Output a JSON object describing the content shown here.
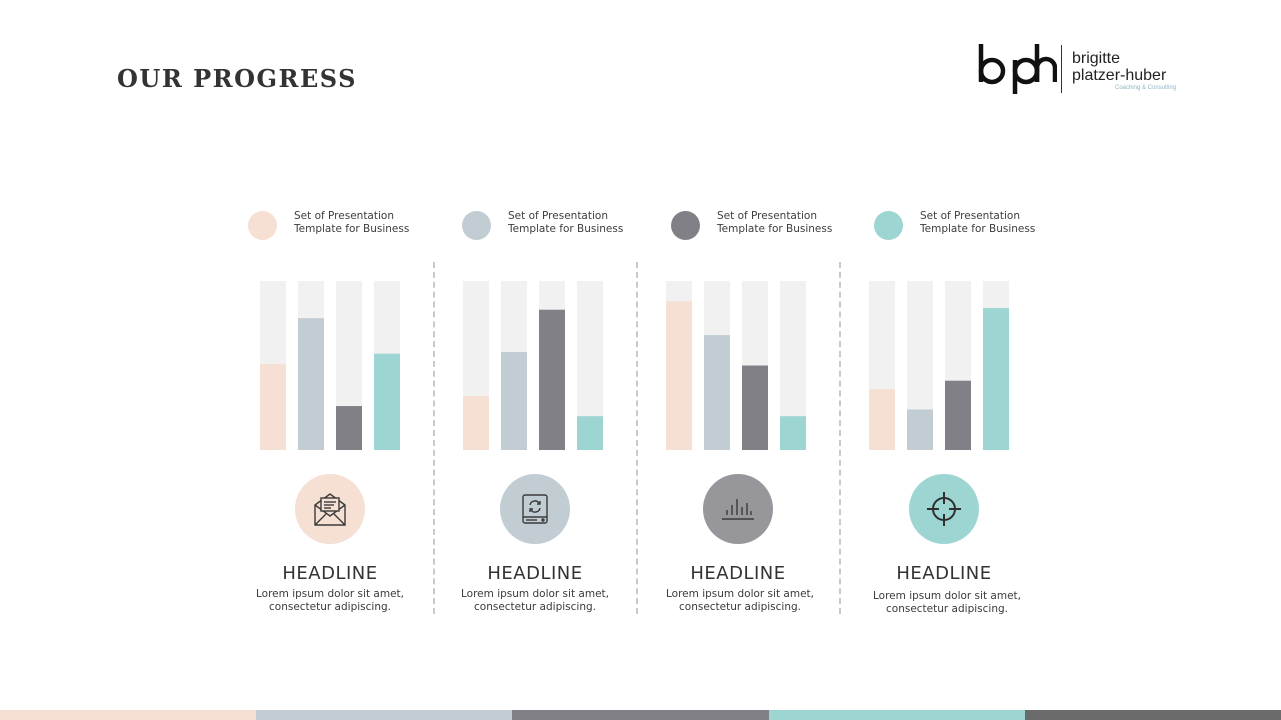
{
  "page": {
    "title": "OUR PROGRESS"
  },
  "logo": {
    "line1": "brigitte",
    "line2": "platzer-huber",
    "tagline": "Coaching & Consulting"
  },
  "colors": {
    "peach": "#f6dfd3",
    "gray_blue": "#c1cdd2",
    "dark_gray": "#818086",
    "teal": "#9dd5d2",
    "track": "#f1f1f1",
    "strip_last": "#6b6b6b"
  },
  "legend": [
    {
      "label_line1": "Set of Presentation",
      "label_line2": "Template for Business",
      "color": "#f6dfd3"
    },
    {
      "label_line1": "Set of Presentation",
      "label_line2": "Template for Business",
      "color": "#c1cdd2"
    },
    {
      "label_line1": "Set of Presentation",
      "label_line2": "Template for Business",
      "color": "#818086"
    },
    {
      "label_line1": "Set of Presentation",
      "label_line2": "Template for Business",
      "color": "#9dd5d2"
    }
  ],
  "chart_data": [
    {
      "type": "bar",
      "categories": [
        "",
        "",
        "",
        ""
      ],
      "values": [
        51,
        78,
        26,
        57
      ],
      "ylim": [
        0,
        100
      ]
    },
    {
      "type": "bar",
      "categories": [
        "",
        "",
        "",
        ""
      ],
      "values": [
        32,
        58,
        83,
        20
      ],
      "ylim": [
        0,
        100
      ]
    },
    {
      "type": "bar",
      "categories": [
        "",
        "",
        "",
        ""
      ],
      "values": [
        88,
        68,
        50,
        20
      ],
      "ylim": [
        0,
        100
      ]
    },
    {
      "type": "bar",
      "categories": [
        "",
        "",
        "",
        ""
      ],
      "values": [
        36,
        24,
        41,
        84
      ],
      "ylim": [
        0,
        100
      ]
    }
  ],
  "sections": [
    {
      "icon": "envelope-icon",
      "icon_bg": "#f6dfd3",
      "headline": "HEADLINE",
      "desc_line1": "Lorem ipsum dolor sit amet,",
      "desc_line2": "consectetur adipiscing."
    },
    {
      "icon": "hard-drive-sync-icon",
      "icon_bg": "#c1cdd2",
      "headline": "HEADLINE",
      "desc_line1": "Lorem ipsum dolor sit amet,",
      "desc_line2": "consectetur adipiscing."
    },
    {
      "icon": "bar-chart-icon",
      "icon_bg": "#97969b",
      "headline": "HEADLINE",
      "desc_line1": "Lorem ipsum dolor sit amet,",
      "desc_line2": "consectetur adipiscing."
    },
    {
      "icon": "crosshair-icon",
      "icon_bg": "#9dd5d2",
      "headline": "HEADLINE",
      "desc_line1": "Lorem ipsum dolor sit amet,",
      "desc_line2": "consectetur adipiscing."
    }
  ],
  "bottom_strip": [
    "#f6dfd3",
    "#c1cdd2",
    "#818086",
    "#9dd5d2",
    "#6b6b6b"
  ]
}
